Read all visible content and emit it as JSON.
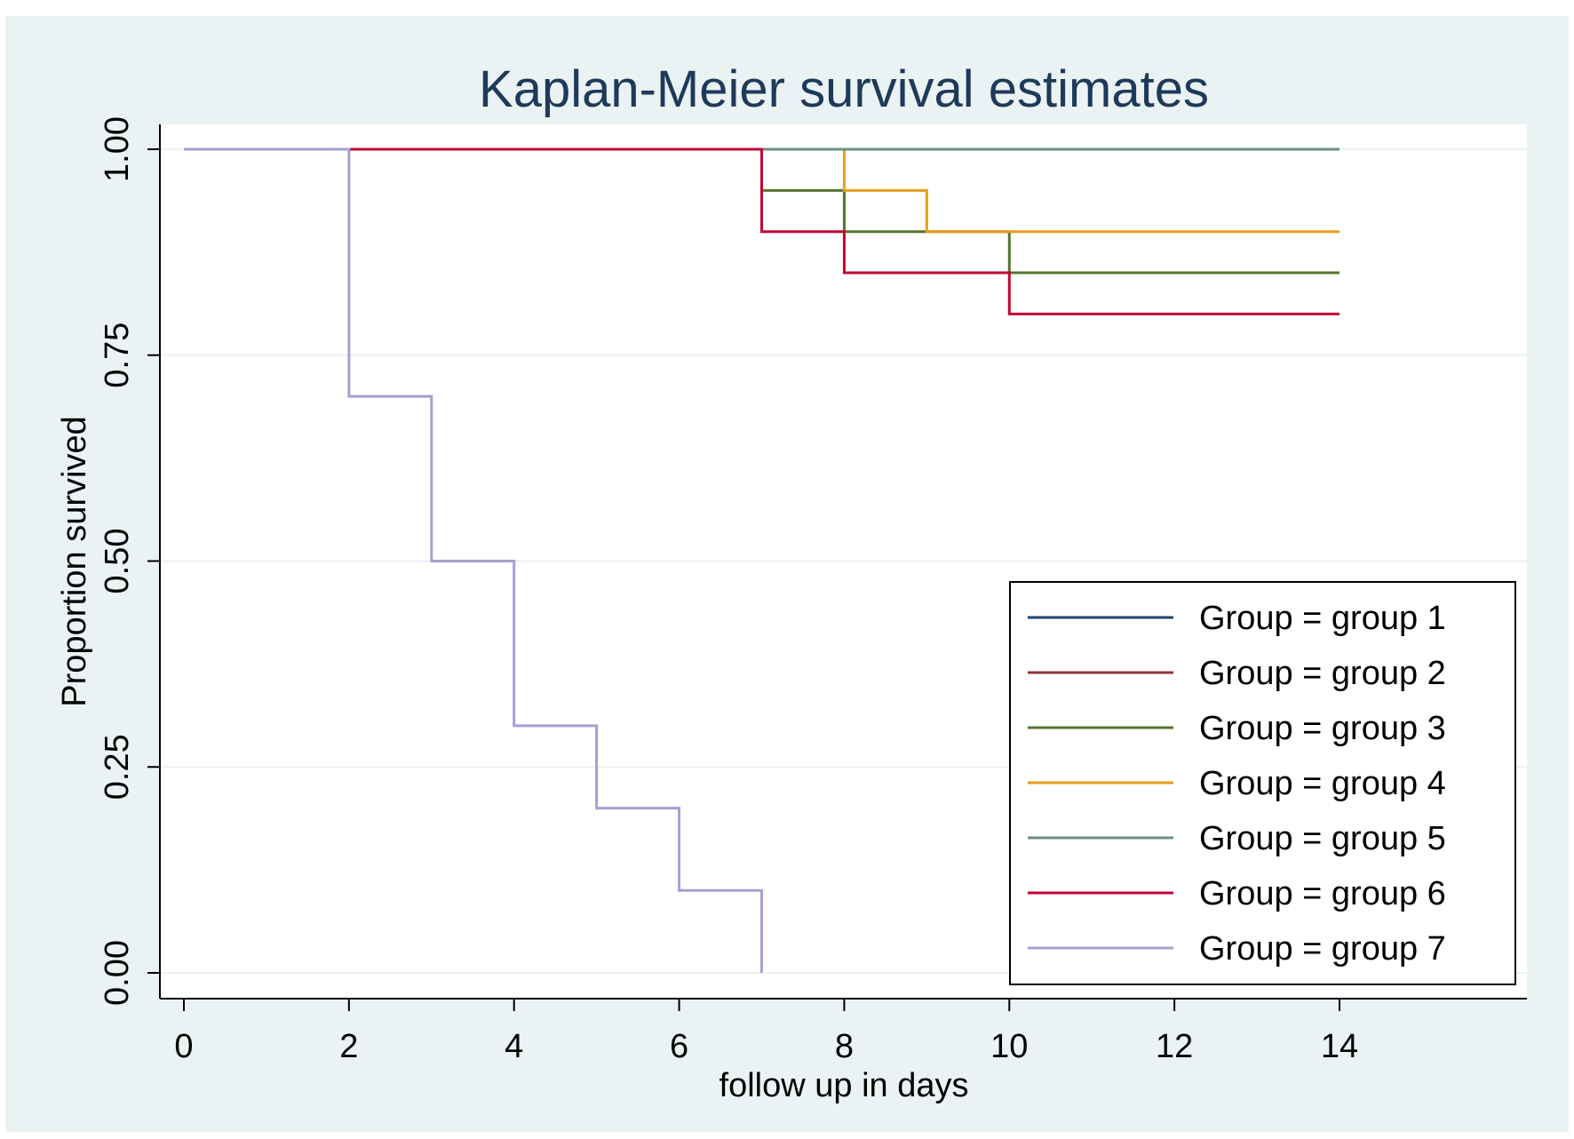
{
  "chart_data": {
    "type": "line",
    "step": true,
    "title": "Kaplan-Meier survival estimates",
    "xlabel": "follow up in days",
    "ylabel": "Proportion survived",
    "xlim": [
      0,
      16.5
    ],
    "ylim": [
      0,
      1.0
    ],
    "xticks": [
      0,
      2,
      4,
      6,
      8,
      10,
      12,
      14
    ],
    "xtick_labels": [
      "0",
      "2",
      "4",
      "6",
      "8",
      "10",
      "12",
      "14"
    ],
    "yticks": [
      0,
      0.25,
      0.5,
      0.75,
      1.0
    ],
    "ytick_labels": [
      "0.00",
      "0.25",
      "0.50",
      "0.75",
      "1.00"
    ],
    "grid": true,
    "legend_position": "bottom-right",
    "series": [
      {
        "name": "Group = group 1",
        "color": "#1a476f",
        "x": [
          0,
          14
        ],
        "y": [
          1.0,
          1.0
        ]
      },
      {
        "name": "Group = group 2",
        "color": "#90353b",
        "x": [
          0,
          14
        ],
        "y": [
          1.0,
          1.0
        ]
      },
      {
        "name": "Group = group 3",
        "color": "#55752f",
        "x": [
          0,
          7,
          8,
          10,
          14
        ],
        "y": [
          1.0,
          0.95,
          0.9,
          0.85,
          0.85
        ]
      },
      {
        "name": "Group = group 4",
        "color": "#e69d1f",
        "x": [
          0,
          8,
          9,
          14
        ],
        "y": [
          1.0,
          0.95,
          0.9,
          0.9
        ]
      },
      {
        "name": "Group = group 5",
        "color": "#6e8e84",
        "x": [
          0,
          14
        ],
        "y": [
          1.0,
          1.0
        ]
      },
      {
        "name": "Group = group 6",
        "color": "#c10534",
        "x": [
          0,
          7,
          8,
          10,
          14
        ],
        "y": [
          1.0,
          0.9,
          0.85,
          0.8,
          0.8
        ]
      },
      {
        "name": "Group = group 7",
        "color": "#a4a0d1",
        "x": [
          0,
          2,
          3,
          4,
          5,
          6,
          7
        ],
        "y": [
          1.0,
          0.7,
          0.5,
          0.3,
          0.2,
          0.1,
          0.0
        ]
      }
    ]
  }
}
